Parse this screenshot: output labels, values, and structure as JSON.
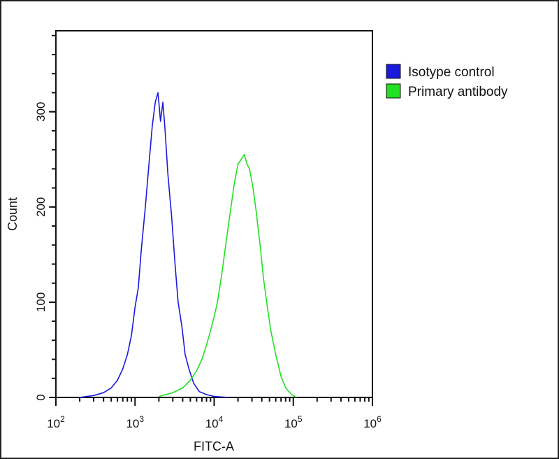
{
  "chart_data": {
    "type": "line",
    "title": "",
    "xlabel": "FITC-A",
    "ylabel": "Count",
    "xscale": "log",
    "xlim": [
      100,
      1000000
    ],
    "ylim": [
      0,
      385
    ],
    "x_ticks": [
      100,
      1000,
      10000,
      100000,
      1000000
    ],
    "x_tick_labels": [
      {
        "base": "10",
        "exp": "2"
      },
      {
        "base": "10",
        "exp": "3"
      },
      {
        "base": "10",
        "exp": "4"
      },
      {
        "base": "10",
        "exp": "5"
      },
      {
        "base": "10",
        "exp": "6"
      }
    ],
    "y_ticks": [
      0,
      100,
      200,
      300
    ],
    "y_tick_labels": [
      "0",
      "100",
      "200",
      "300"
    ],
    "grid": false,
    "legend_placement": "outside-right-top",
    "series": [
      {
        "name": "Isotype control",
        "color": "#1a1adc",
        "x": [
          200,
          300,
          400,
          500,
          600,
          700,
          800,
          900,
          1000,
          1100,
          1200,
          1350,
          1500,
          1650,
          1800,
          1950,
          2100,
          2250,
          2400,
          2600,
          2900,
          3200,
          3500,
          3900,
          4300,
          4800,
          5500,
          6500,
          8000,
          10000,
          15000
        ],
        "y": [
          0,
          2,
          5,
          10,
          18,
          30,
          45,
          65,
          95,
          115,
          155,
          200,
          245,
          285,
          310,
          320,
          290,
          310,
          280,
          235,
          190,
          140,
          100,
          75,
          45,
          30,
          15,
          6,
          3,
          1,
          0
        ]
      },
      {
        "name": "Primary antibody",
        "color": "#22e022",
        "x": [
          2000,
          3000,
          4000,
          5000,
          6000,
          7000,
          8000,
          9000,
          10000,
          11000,
          12500,
          14000,
          16000,
          18000,
          20000,
          22000,
          24000,
          26000,
          28000,
          31000,
          34000,
          38000,
          42000,
          47000,
          52000,
          60000,
          70000,
          80000,
          95000,
          110000
        ],
        "y": [
          1,
          5,
          10,
          18,
          28,
          40,
          55,
          70,
          85,
          100,
          130,
          160,
          195,
          225,
          245,
          250,
          255,
          245,
          240,
          220,
          195,
          160,
          125,
          95,
          70,
          45,
          22,
          10,
          3,
          0
        ]
      }
    ]
  }
}
